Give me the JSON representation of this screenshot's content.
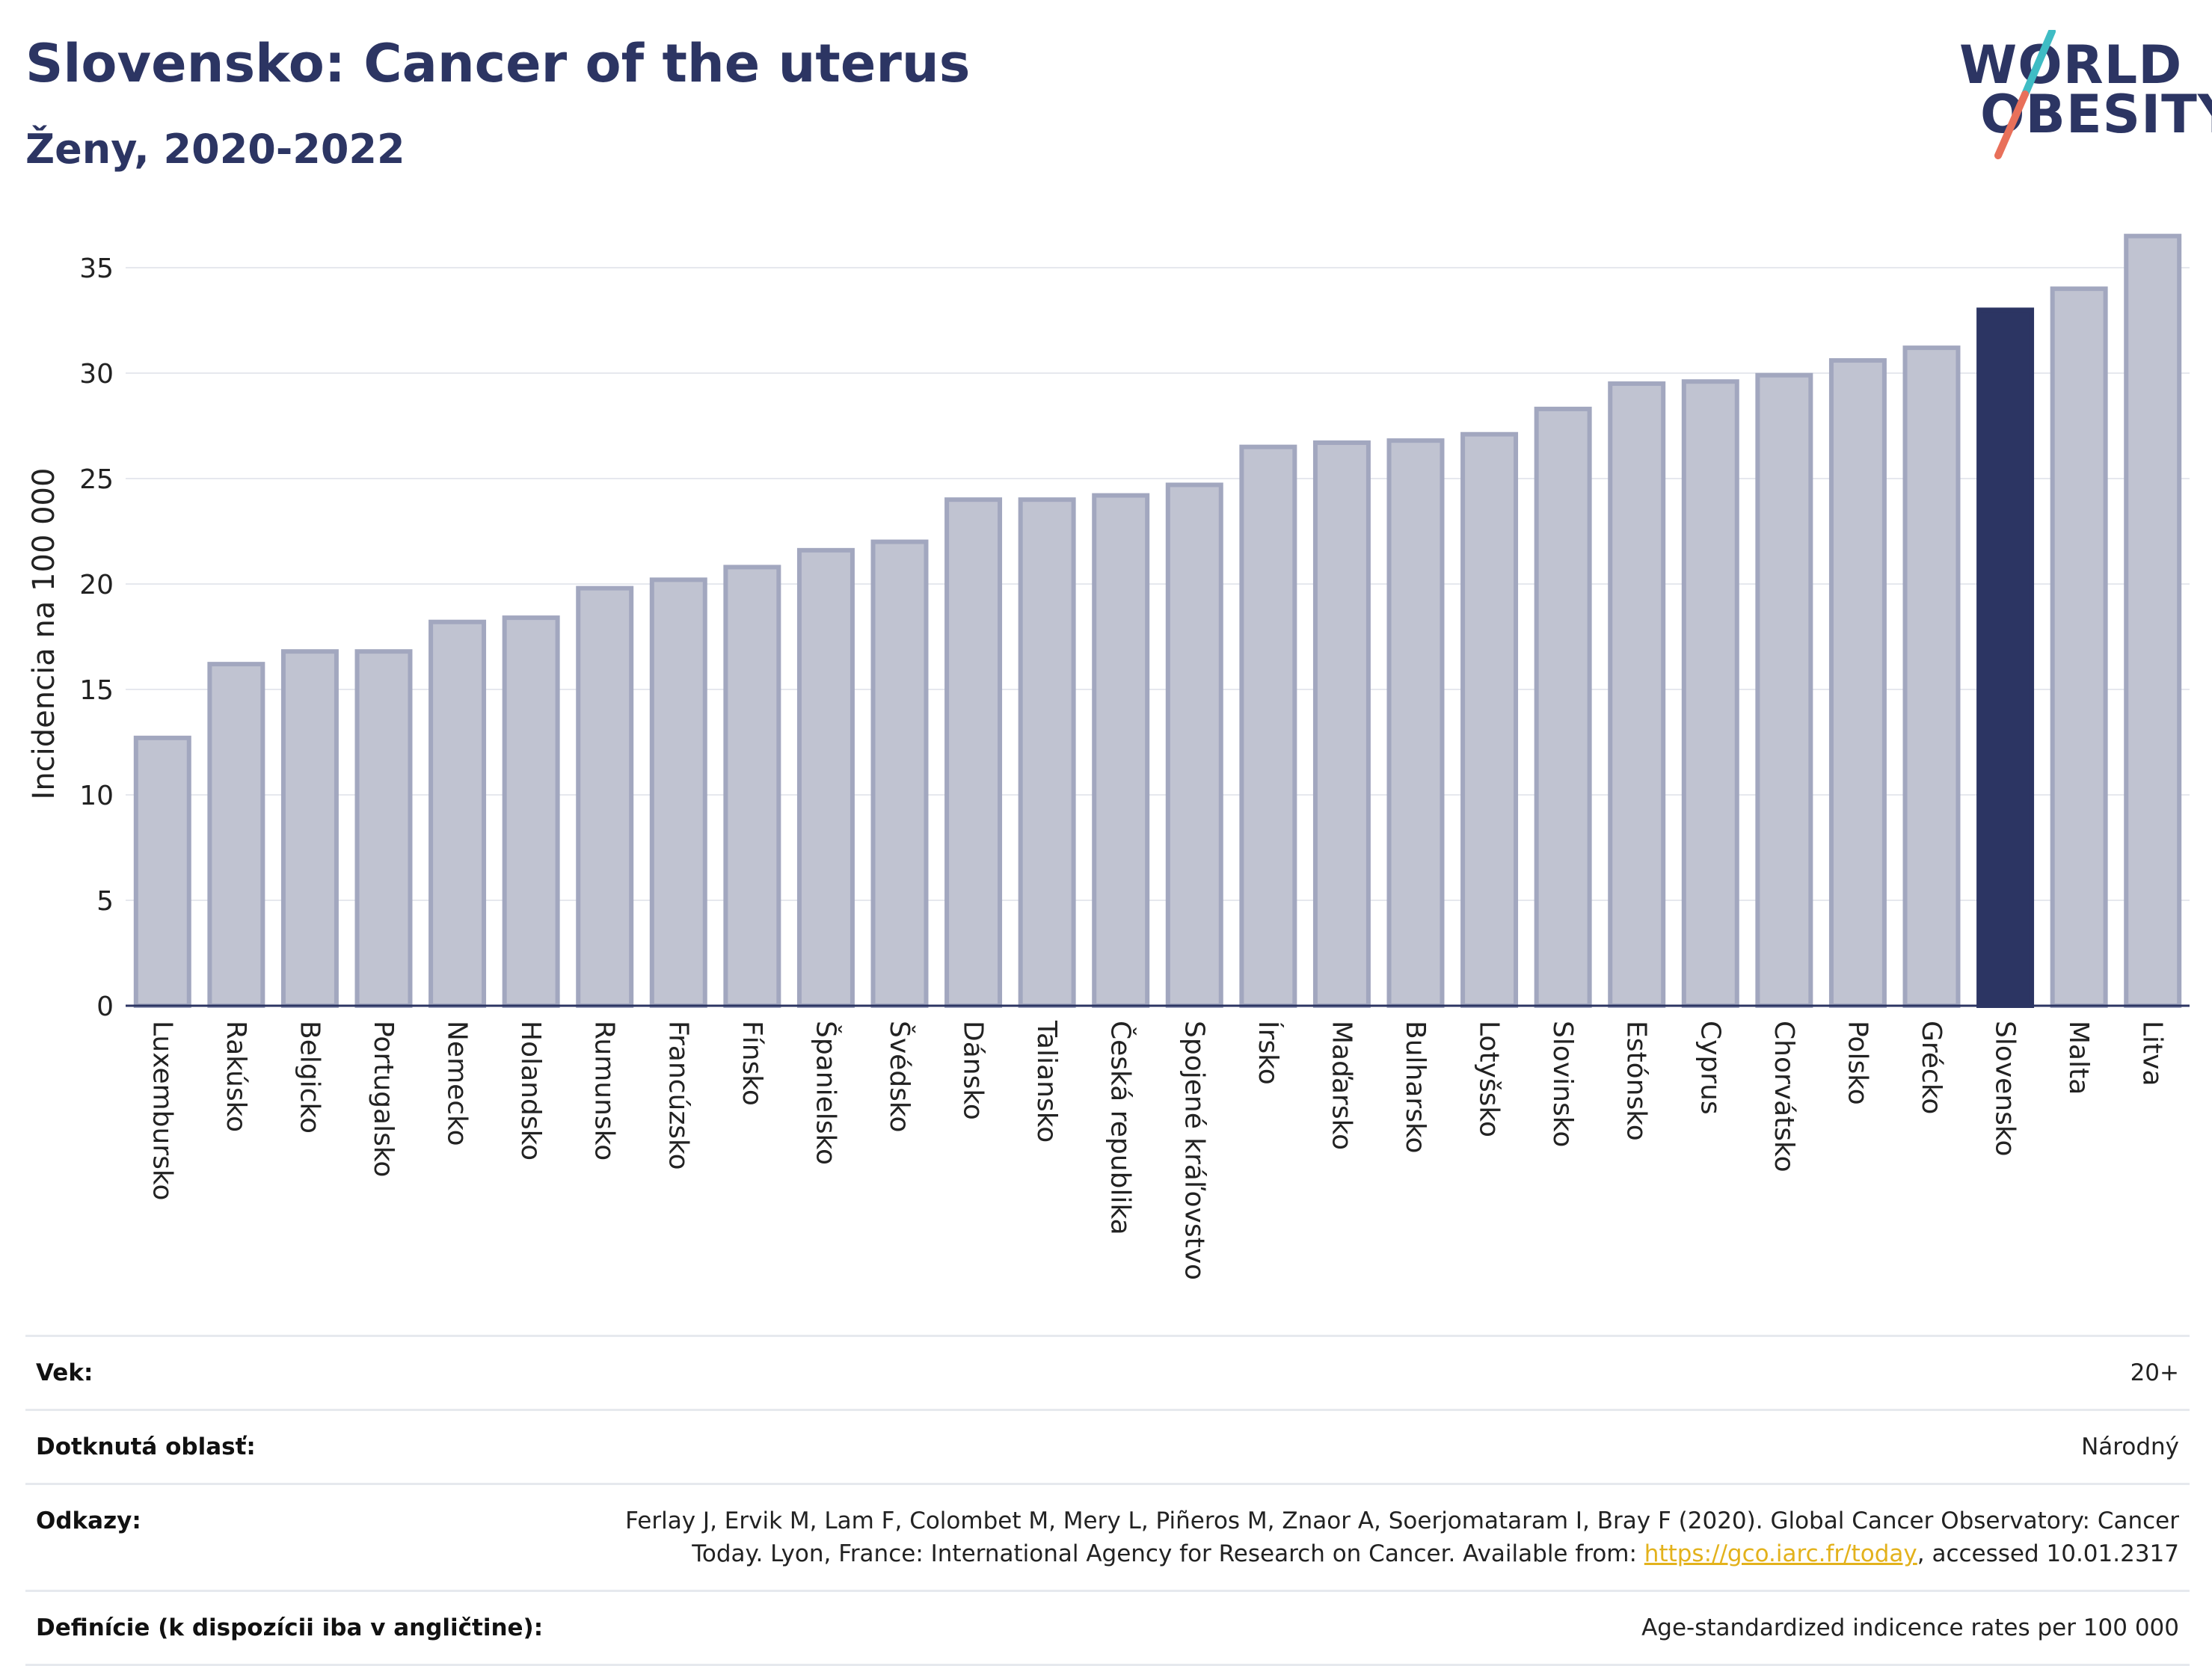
{
  "header": {
    "title": "Slovensko: Cancer of the uterus",
    "subtitle": "Ženy, 2020-2022"
  },
  "logo": {
    "line1": "WORLD",
    "line2": "OBESITY",
    "colors": {
      "text": "#2c3563",
      "slash_top": "#3fbcc4",
      "slash_bottom": "#e8705a"
    }
  },
  "colors": {
    "bar_fill": "#c0c3d1",
    "bar_stroke": "#a2a7bf",
    "highlight_fill": "#2c3563",
    "grid": "#e6e8ee",
    "axis": "#2c3563"
  },
  "chart_data": {
    "type": "bar",
    "title": "Slovensko: Cancer of the uterus",
    "subtitle": "Ženy, 2020-2022",
    "xlabel": "",
    "ylabel": "Incidencia na 100 000",
    "ylim": [
      0,
      36.7
    ],
    "yticks": [
      0,
      5,
      10,
      15,
      20,
      25,
      30,
      35
    ],
    "grid": true,
    "highlight": "Slovensko",
    "categories": [
      "Luxembursko",
      "Rakúsko",
      "Belgicko",
      "Portugalsko",
      "Nemecko",
      "Holandsko",
      "Rumunsko",
      "Francúzsko",
      "Fínsko",
      "Španielsko",
      "Švédsko",
      "Dánsko",
      "Taliansko",
      "Česká republika",
      "Spojené kráľovstvo",
      "Írsko",
      "Maďarsko",
      "Bulharsko",
      "Lotyšsko",
      "Slovinsko",
      "Estónsko",
      "Cyprus",
      "Chorvátsko",
      "Polsko",
      "Grécko",
      "Slovensko",
      "Malta",
      "Litva"
    ],
    "values": [
      12.7,
      16.2,
      16.8,
      16.8,
      18.2,
      18.4,
      19.8,
      20.2,
      20.8,
      21.6,
      22.0,
      24.0,
      24.0,
      24.2,
      24.7,
      26.5,
      26.7,
      26.8,
      27.1,
      28.3,
      29.5,
      29.6,
      29.9,
      30.6,
      31.2,
      33.0,
      34.0,
      36.5
    ]
  },
  "info": {
    "age_label": "Vek:",
    "age_value": "20+",
    "area_label": "Dotknutá oblasť:",
    "area_value": "Národný",
    "refs_label": "Odkazy:",
    "refs_text_1": "Ferlay J, Ervik M, Lam F, Colombet M, Mery L, Piñeros M, Znaor A, Soerjomataram I, Bray F (2020). Global Cancer Observatory: Cancer Today. Lyon, France: International Agency for Research on Cancer. Available from: ",
    "refs_link": "https://gco.iarc.fr/today",
    "refs_text_2": ", accessed 10.01.2317",
    "def_label": "Definície (k dispozícii iba v angličtine):",
    "def_value": "Age-standardized indicence rates per 100 000"
  }
}
